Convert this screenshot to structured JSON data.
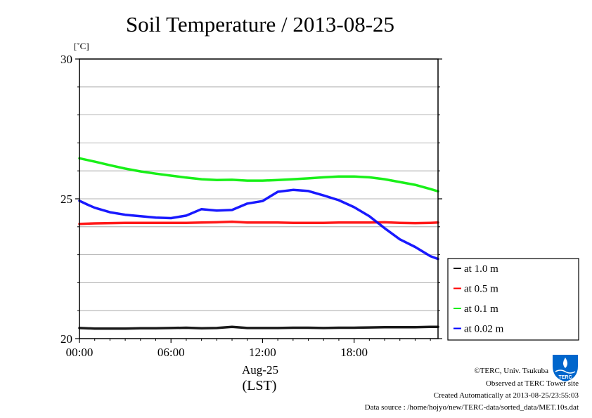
{
  "chart_data": {
    "type": "line",
    "title": "Soil Temperature / 2013-08-25",
    "ylabel": "[˚C]",
    "xlabel": "(LST)",
    "date_label": "Aug-25",
    "x_ticks": [
      "00:00",
      "06:00",
      "12:00",
      "18:00"
    ],
    "x_tick_hours": [
      0,
      6,
      12,
      18
    ],
    "y_ticks": [
      "30",
      "25",
      "20"
    ],
    "y_tick_values": [
      30,
      25,
      20
    ],
    "xlim": [
      0,
      23.5
    ],
    "ylim": [
      20,
      30
    ],
    "y_minor_step": 1,
    "grid": true,
    "legend_position": "right",
    "series": [
      {
        "name": "at 1.0 m",
        "color": "#000000",
        "x": [
          0,
          1,
          2,
          3,
          4,
          5,
          6,
          7,
          8,
          9,
          10,
          11,
          12,
          13,
          14,
          15,
          16,
          17,
          18,
          19,
          20,
          21,
          22,
          23,
          23.5
        ],
        "y": [
          20.38,
          20.36,
          20.36,
          20.36,
          20.37,
          20.37,
          20.38,
          20.39,
          20.37,
          20.38,
          20.42,
          20.38,
          20.38,
          20.38,
          20.39,
          20.39,
          20.38,
          20.39,
          20.39,
          20.4,
          20.41,
          20.41,
          20.41,
          20.42,
          20.42
        ]
      },
      {
        "name": "at 0.5 m",
        "color": "#ff0000",
        "x": [
          0,
          1,
          2,
          3,
          4,
          5,
          6,
          7,
          8,
          9,
          10,
          11,
          12,
          13,
          14,
          15,
          16,
          17,
          18,
          19,
          20,
          21,
          22,
          23,
          23.5
        ],
        "y": [
          24.1,
          24.12,
          24.13,
          24.14,
          24.14,
          24.14,
          24.14,
          24.14,
          24.15,
          24.16,
          24.18,
          24.15,
          24.15,
          24.15,
          24.14,
          24.14,
          24.14,
          24.15,
          24.15,
          24.15,
          24.16,
          24.14,
          24.13,
          24.14,
          24.15
        ]
      },
      {
        "name": "at 0.1 m",
        "color": "#00ee00",
        "x": [
          0,
          1,
          2,
          3,
          4,
          5,
          6,
          7,
          8,
          9,
          10,
          11,
          12,
          13,
          14,
          15,
          16,
          17,
          18,
          19,
          20,
          21,
          22,
          23,
          23.5
        ],
        "y": [
          26.45,
          26.33,
          26.2,
          26.08,
          25.98,
          25.9,
          25.83,
          25.76,
          25.7,
          25.67,
          25.68,
          25.65,
          25.65,
          25.67,
          25.7,
          25.73,
          25.77,
          25.8,
          25.8,
          25.77,
          25.7,
          25.6,
          25.5,
          25.35,
          25.27
        ]
      },
      {
        "name": "at 0.02 m",
        "color": "#0000ff",
        "x": [
          0,
          0.5,
          1,
          2,
          3,
          4,
          5,
          6,
          7,
          8,
          9,
          10,
          11,
          12,
          13,
          14,
          15,
          16,
          17,
          18,
          19,
          20,
          21,
          22,
          23,
          23.5
        ],
        "y": [
          24.93,
          24.8,
          24.68,
          24.52,
          24.43,
          24.38,
          24.33,
          24.31,
          24.4,
          24.63,
          24.58,
          24.6,
          24.83,
          24.92,
          25.25,
          25.32,
          25.28,
          25.12,
          24.95,
          24.7,
          24.38,
          23.95,
          23.55,
          23.28,
          22.95,
          22.85
        ]
      }
    ]
  },
  "credits": {
    "copyright": "©TERC, Univ. Tsukuba",
    "observed": "Observed at TERC Tower site",
    "created": "Created Automatically at 2013-08-25/23:55:03",
    "source": "Data source : /home/hojyo/new/TERC-data/sorted_data/MET.10s.dat",
    "logo_text": "TERC",
    "logo_color": "#0066cc"
  }
}
